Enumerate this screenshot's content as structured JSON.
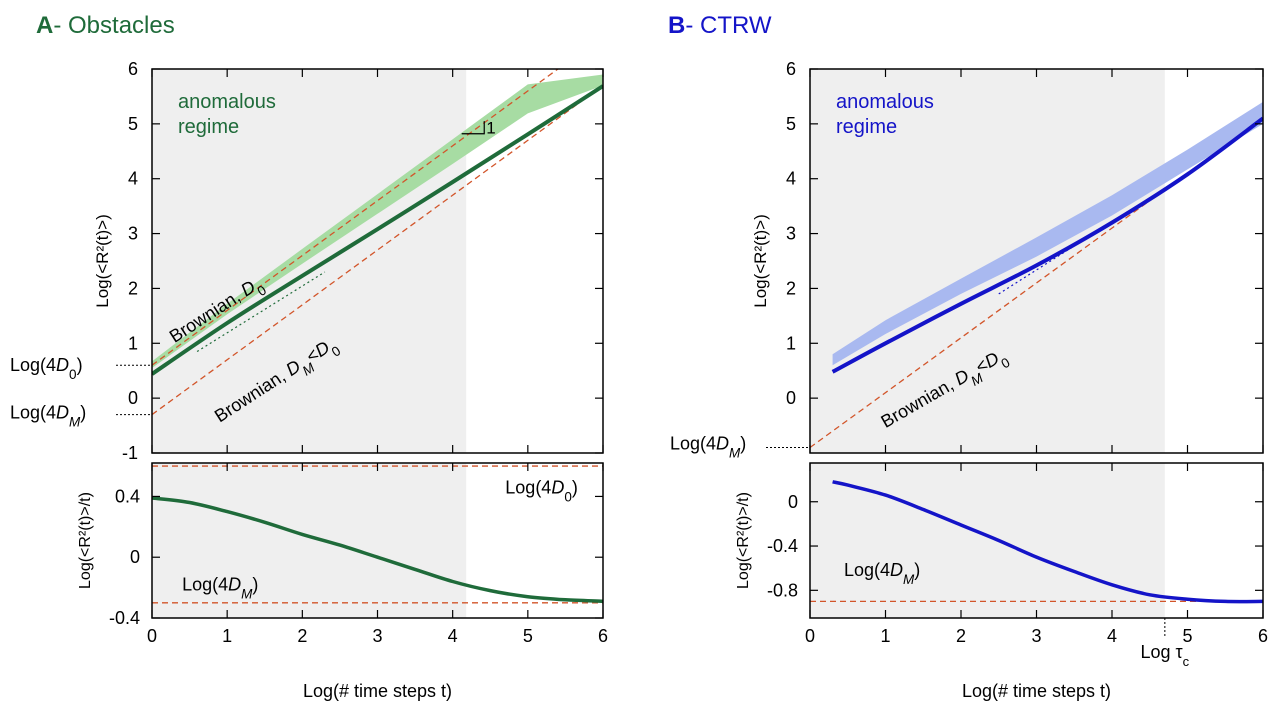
{
  "colors": {
    "obstacles": "#1f6b3a",
    "obstacles_band": "#a7dca3",
    "ctrw": "#1414c8",
    "ctrw_band": "#a9b9f0",
    "reference": "#d2552a",
    "shading": "#efefef"
  },
  "panels": {
    "a": {
      "letter": "A",
      "title_rest": "- Obstacles"
    },
    "b": {
      "letter": "B",
      "title_rest": "- CTRW"
    }
  },
  "chart_data": [
    {
      "panel": "A",
      "type": "line",
      "title": "A- Obstacles",
      "xlabel": "Log(# time steps t)",
      "ylabel": "Log(<R²(t)>)",
      "xlim": [
        0,
        6
      ],
      "ylim": [
        -1,
        6
      ],
      "xticks": [
        "0",
        "1",
        "2",
        "3",
        "4",
        "5",
        "6"
      ],
      "yticks": [
        "-1",
        "0",
        "1",
        "2",
        "3",
        "4",
        "5",
        "6"
      ],
      "shaded_x": [
        0,
        4.18
      ],
      "annotations": {
        "regime": [
          "anomalous",
          "regime"
        ],
        "brownian_d0": "Brownian, D0",
        "brownian_dm": "Brownian, DM<D0",
        "slope": "1",
        "log_4d0": "Log(4D0)",
        "log_4dm": "Log(4DM)"
      },
      "series": [
        {
          "x": [
            0,
            1,
            2,
            3,
            4,
            5,
            6
          ],
          "y": [
            0.44,
            1.37,
            2.23,
            3.08,
            3.94,
            4.81,
            5.69
          ]
        },
        {
          "x": [
            0,
            1,
            2,
            3,
            4,
            5,
            6
          ],
          "y_low": [
            0.55,
            1.53,
            2.45,
            3.36,
            4.27,
            5.19,
            5.7
          ],
          "y_high": [
            0.67,
            1.72,
            2.72,
            3.72,
            4.72,
            5.72,
            5.9
          ]
        }
      ],
      "reference_lines": [
        {
          "intercept": 0.6,
          "slope": 1
        },
        {
          "intercept": -0.3,
          "slope": 1
        }
      ],
      "lower": {
        "ylabel": "Log(<R²(t)>/t)",
        "ylim": [
          -0.4,
          0.62
        ],
        "yticks": [
          "-0.4",
          "0",
          "0.4"
        ],
        "x": [
          0,
          0.5,
          1,
          1.5,
          2,
          2.5,
          3,
          3.5,
          4,
          4.5,
          5,
          5.5,
          6
        ],
        "y": [
          0.39,
          0.36,
          0.3,
          0.23,
          0.15,
          0.08,
          0.0,
          -0.08,
          -0.16,
          -0.22,
          -0.26,
          -0.28,
          -0.29
        ],
        "reference_y": [
          0.6,
          -0.3
        ],
        "labels": {
          "log_4d0": "Log(4D0)",
          "log_4dm": "Log(4DM)"
        }
      }
    },
    {
      "panel": "B",
      "type": "line",
      "title": "B- CTRW",
      "xlabel": "Log(# time steps t)",
      "ylabel": "Log(<R²(t)>)",
      "xlim": [
        0,
        6
      ],
      "ylim": [
        -1,
        6
      ],
      "xticks": [
        "0",
        "1",
        "2",
        "3",
        "4",
        "5",
        "6"
      ],
      "yticks": [
        "0",
        "1",
        "2",
        "3",
        "4",
        "5",
        "6"
      ],
      "shaded_x": [
        0,
        4.7
      ],
      "annotations": {
        "regime": [
          "anomalous",
          "regime"
        ],
        "brownian_dm": "Brownian, DM<D0",
        "log_4dm": "Log(4DM)",
        "log_tau": "Log τc"
      },
      "series": [
        {
          "x": [
            0.3,
            1,
            2,
            3,
            4,
            5,
            6
          ],
          "y": [
            0.48,
            1.0,
            1.72,
            2.42,
            3.2,
            4.08,
            5.1
          ]
        },
        {
          "x": [
            0.3,
            1,
            2,
            3,
            4,
            5,
            6
          ],
          "y_low": [
            0.6,
            1.17,
            1.9,
            2.58,
            3.33,
            4.17,
            5.0
          ],
          "y_high": [
            0.8,
            1.42,
            2.18,
            2.93,
            3.7,
            4.53,
            5.4
          ]
        }
      ],
      "reference_lines": [
        {
          "intercept": -0.9,
          "slope": 1
        }
      ],
      "lower": {
        "ylabel": "Log(<R²(t)>/t)",
        "ylim": [
          -1.05,
          0.35
        ],
        "yticks": [
          "0",
          "-0.4",
          "-0.8"
        ],
        "x": [
          0.3,
          0.5,
          1,
          1.5,
          2,
          2.5,
          3,
          3.5,
          4,
          4.5,
          5,
          5.5,
          6
        ],
        "y": [
          0.18,
          0.15,
          0.06,
          -0.07,
          -0.21,
          -0.35,
          -0.5,
          -0.63,
          -0.75,
          -0.84,
          -0.88,
          -0.9,
          -0.9
        ],
        "reference_y": [
          -0.9
        ],
        "labels": {
          "log_4dm": "Log(4DM)"
        }
      }
    }
  ]
}
